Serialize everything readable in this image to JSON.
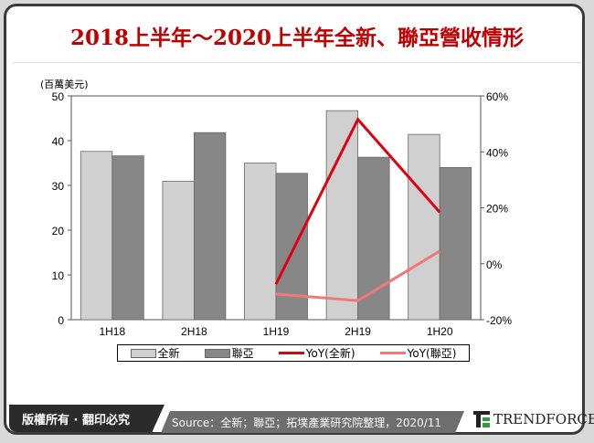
{
  "title": "2018上半年～2020上半年全新、聯亞營收情形",
  "footer": {
    "copyright": "版權所有 · 翻印必究",
    "source": "Source：全新；聯亞；拓墣產業研究院整理，2020/11",
    "logo_text": "TRENDFORCE"
  },
  "chart_data": {
    "type": "bar+line",
    "title": "",
    "ylabel": "(百萬美元)",
    "categories": [
      "1H18",
      "2H18",
      "1H19",
      "2H19",
      "1H20"
    ],
    "ylim": [
      0,
      50
    ],
    "yticks": [
      "0",
      "10",
      "20",
      "30",
      "40",
      "50"
    ],
    "y2lim": [
      -20,
      60
    ],
    "y2ticks": [
      "-20%",
      "0%",
      "20%",
      "40%",
      "60%"
    ],
    "grid": false,
    "legend_position": "bottom",
    "bar_series": [
      {
        "name": "全新",
        "color": "#d0d0d0",
        "values": [
          37.6,
          30.9,
          35.0,
          46.7,
          41.4
        ]
      },
      {
        "name": "聯亞",
        "color": "#878787",
        "values": [
          36.6,
          41.8,
          32.7,
          36.3,
          34.0
        ]
      }
    ],
    "line_series": [
      {
        "name": "YoY(全新)",
        "color": "#e00010",
        "values": [
          null,
          null,
          -7.3,
          51.6,
          18.4
        ]
      },
      {
        "name": "YoY(聯亞)",
        "color": "#f07878",
        "values": [
          null,
          null,
          -10.8,
          -13.2,
          4.5
        ]
      }
    ]
  }
}
